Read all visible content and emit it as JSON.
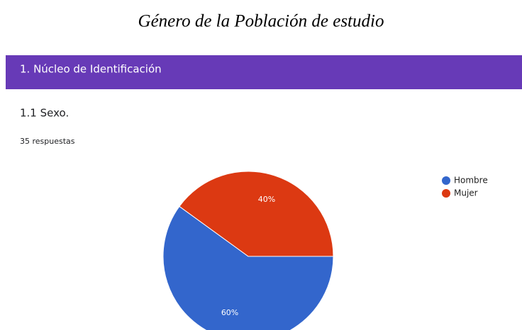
{
  "caption": "Género de la Población de estudio",
  "form": {
    "section": "1. Núcleo de Identificación",
    "question": "1.1 Sexo.",
    "responses": "35 respuestas"
  },
  "chart_data": {
    "type": "pie",
    "categories": [
      "Hombre",
      "Mujer"
    ],
    "values": [
      60,
      40
    ],
    "value_labels": [
      "60%",
      "40%"
    ],
    "colors": [
      "#3366cc",
      "#dc3912"
    ],
    "legend": "right"
  }
}
